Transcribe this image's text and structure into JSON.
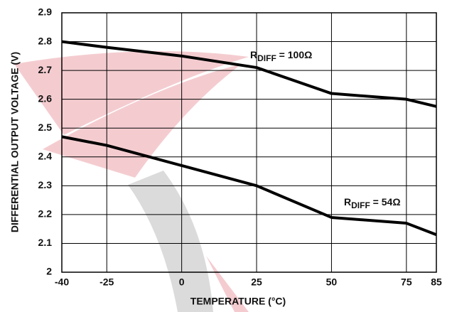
{
  "chart_data": {
    "type": "line",
    "ylabel": "DIFFERENTIAL OUTPUT VOLTAGE (V)",
    "xlabel": "TEMPERATURE (°C)",
    "x": [
      -40,
      -25,
      0,
      25,
      50,
      75,
      85
    ],
    "series": [
      {
        "name": "100",
        "color": "#000000",
        "values": [
          2.8,
          2.78,
          2.75,
          2.71,
          2.62,
          2.6,
          2.575
        ]
      },
      {
        "name": "54",
        "color": "#000000",
        "values": [
          2.47,
          2.44,
          2.37,
          2.3,
          2.19,
          2.17,
          2.13
        ]
      }
    ],
    "annotations": [
      {
        "main": "R",
        "sub": "DIFF",
        "rest": " = 100Ω"
      },
      {
        "main": "R",
        "sub": "DIFF",
        "rest": " = 54Ω"
      }
    ],
    "xlim": [
      -40,
      85
    ],
    "xticks": [
      -40,
      -25,
      0,
      25,
      50,
      75,
      85
    ],
    "ylim": [
      2,
      2.9
    ],
    "yticks": [
      2,
      2.1,
      2.2,
      2.3,
      2.4,
      2.5,
      2.6,
      2.7,
      2.8,
      2.9
    ],
    "grid": true
  }
}
